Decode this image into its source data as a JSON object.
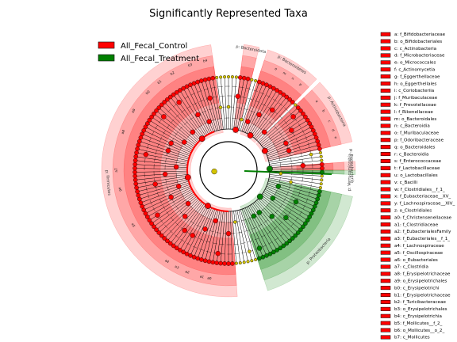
{
  "chart_data": {
    "type": "cladogram",
    "title": "Significantly Represented Taxa",
    "legend": [
      {
        "name": "All_Fecal_Control",
        "color": "#ff0000"
      },
      {
        "name": "All_Fecal_Treatment",
        "color": "#008000"
      }
    ],
    "colors": {
      "control_fill": "#ff0000",
      "treatment_fill": "#008000",
      "neutral_node": "#d4c400",
      "edge": "#000000"
    },
    "clades": [
      {
        "label": "p: Bacteroidota",
        "group": "control",
        "start_deg": -83,
        "end_deg": -76
      },
      {
        "label": "p: Bacteroidetes",
        "group": "control",
        "start_deg": -72,
        "end_deg": -46
      },
      {
        "label": "p: Actinobacteria",
        "group": "control",
        "start_deg": -44,
        "end_deg": -13
      },
      {
        "label": "p: Proteobacteria",
        "group": "control",
        "start_deg": -4,
        "end_deg": 0
      },
      {
        "label": "p: Verrucomicrobia",
        "group": "treatment",
        "start_deg": 0,
        "end_deg": 2
      },
      {
        "label": "p: Proteobacteria",
        "group": "treatment",
        "start_deg": 12,
        "end_deg": 72
      },
      {
        "label": "p: Firmicutes",
        "group": "control",
        "start_deg": 86,
        "end_deg": 262
      }
    ],
    "ring_labels": [
      {
        "text": "a0",
        "deg": 100
      },
      {
        "text": "a1",
        "deg": 104
      },
      {
        "text": "a2",
        "deg": 112
      },
      {
        "text": "a3",
        "deg": 118
      },
      {
        "text": "a4",
        "deg": 124
      },
      {
        "text": "a5",
        "deg": 150
      },
      {
        "text": "a6",
        "deg": 170
      },
      {
        "text": "a7",
        "deg": 180
      },
      {
        "text": "a8",
        "deg": 200
      },
      {
        "text": "a9",
        "deg": 212
      },
      {
        "text": "b0",
        "deg": 224
      },
      {
        "text": "b1",
        "deg": 232
      },
      {
        "text": "b2",
        "deg": 240
      },
      {
        "text": "b3",
        "deg": 250
      },
      {
        "text": "b4",
        "deg": 258
      },
      {
        "text": "a",
        "deg": -38
      },
      {
        "text": "b",
        "deg": -32
      },
      {
        "text": "c",
        "deg": -26
      },
      {
        "text": "d",
        "deg": -21
      },
      {
        "text": "e",
        "deg": -17
      },
      {
        "text": "m",
        "deg": -60
      },
      {
        "text": "n",
        "deg": -55
      },
      {
        "text": "o",
        "deg": -65
      },
      {
        "text": "p",
        "deg": -50
      }
    ],
    "key": [
      "a: f_Bifidobacteriaceae",
      "b: o_Bifidobacteriales",
      "c: c_Actinobacteria",
      "d: f_Microbacteriaceae",
      "e: o_Micrococcales",
      "f: c_Actinomycetia",
      "g: f_Eggerthellaceae",
      "h: o_Eggerthellales",
      "i: c_Coriobacteriia",
      "j: f_Muribaculaceae",
      "k: f_Prevotellaceae",
      "l: f_Rikenellaceae",
      "m: o_Bacteroidales",
      "n: c_Bacteroidia",
      "o: f_Muribaculaceae",
      "p: f_Odoribacteraceae",
      "q: o_Bacteroidales",
      "r: c_Bacteroidia",
      "s: f_Enterococcaceae",
      "t: f_Lactobacillaceae",
      "u: o_Lactobacillales",
      "v: c_Bacilli",
      "w: f_Clostridiales__f_1_",
      "x: f_Eubacteriaceae__XV_",
      "y: f_Lachnospiraceae__XIV_",
      "z: o_Clostridiales",
      "a0: f_Christensenellaceae",
      "a1: f_Clostridiaceae",
      "a2: f_EubacterialesFamily",
      "a3: f_Eubacteriales__f_1_",
      "a4: f_Lachnospiraceae",
      "a5: f_Oscillospiraceae",
      "a6: o_Eubacteriales",
      "a7: c_Clostridia",
      "a8: f_Erysipelotrichaceae",
      "a9: o_Erysipelotrichales",
      "b0: c_Erysipelotrichi",
      "b1: f_Erysipelotrichaceae",
      "b2: f_Turicibacteraceae",
      "b3: o_Erysipelotrichales",
      "b4: c_Erysipelotrichia",
      "b5: f_Mollicutes__f_2_",
      "b6: o_Mollicutes__o_2_",
      "b7: c_Mollicutes"
    ]
  }
}
